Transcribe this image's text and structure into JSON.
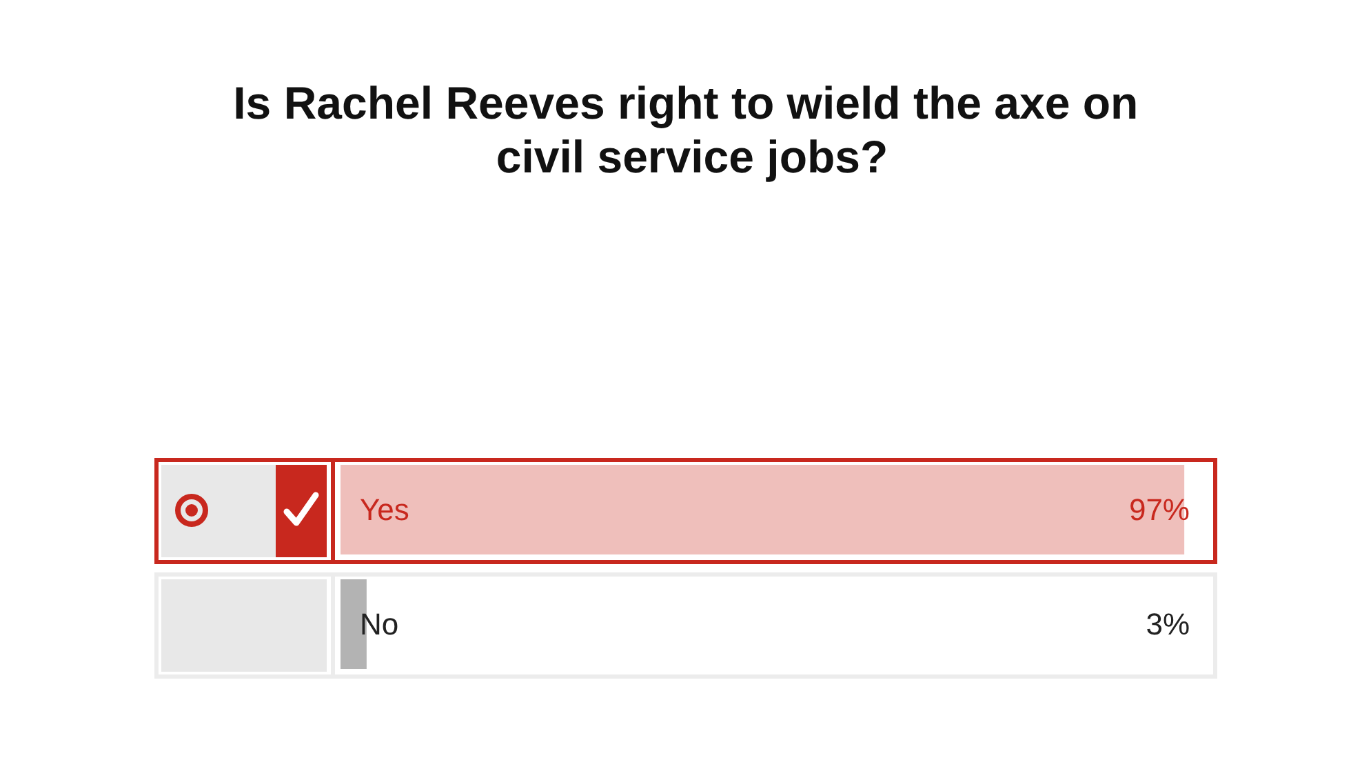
{
  "chart_data": {
    "type": "bar",
    "orientation": "horizontal",
    "title": "Is Rachel Reeves right to wield the axe on civil service jobs?",
    "categories": [
      "Yes",
      "No"
    ],
    "values": [
      97,
      3
    ],
    "colors": [
      "#efbfbb",
      "#b3b3b3"
    ],
    "value_labels": [
      "97%",
      "3%"
    ],
    "tick_labels": "y"
  }
}
